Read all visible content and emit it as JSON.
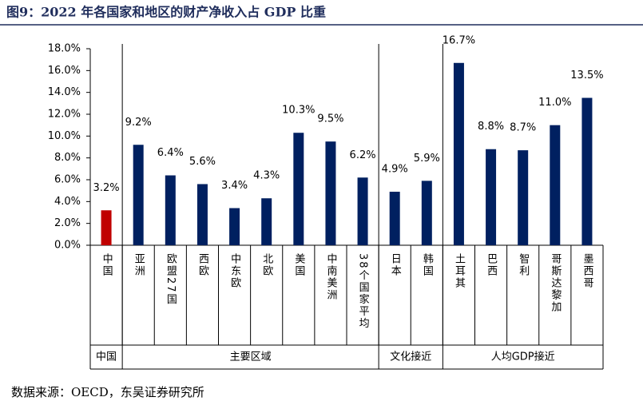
{
  "chart_data": {
    "type": "bar",
    "title": "图9：2022 年各国家和地区的财产净收入占 GDP 比重",
    "source": "数据来源：OECD，东吴证券研究所",
    "categories": [
      "中国",
      "亚洲",
      "欧盟27国",
      "西欧",
      "中东欧",
      "北欧",
      "美国",
      "中南美洲",
      "38个国家平均",
      "日本",
      "韩国",
      "土耳其",
      "巴西",
      "智利",
      "哥斯达黎加",
      "墨西哥"
    ],
    "values": [
      3.2,
      9.2,
      6.4,
      5.6,
      3.4,
      4.3,
      10.3,
      9.5,
      6.2,
      4.9,
      5.9,
      16.7,
      8.8,
      8.7,
      11.0,
      13.5
    ],
    "value_labels": [
      "3.2%",
      "9.2%",
      "6.4%",
      "5.6%",
      "3.4%",
      "4.3%",
      "10.3%",
      "9.5%",
      "6.2%",
      "4.9%",
      "5.9%",
      "16.7%",
      "8.8%",
      "8.7%",
      "11.0%",
      "13.5%"
    ],
    "colors": [
      "#c00000",
      "#002060",
      "#002060",
      "#002060",
      "#002060",
      "#002060",
      "#002060",
      "#002060",
      "#002060",
      "#002060",
      "#002060",
      "#002060",
      "#002060",
      "#002060",
      "#002060",
      "#002060"
    ],
    "groups": [
      {
        "label": "中国",
        "members": [
          "中国"
        ]
      },
      {
        "label": "主要区域",
        "members": [
          "亚洲",
          "欧盟27国",
          "西欧",
          "中东欧",
          "北欧",
          "美国",
          "中南美洲",
          "38个国家平均"
        ]
      },
      {
        "label": "文化接近",
        "members": [
          "日本",
          "韩国"
        ]
      },
      {
        "label": "人均GDP接近",
        "members": [
          "土耳其",
          "巴西",
          "智利",
          "哥斯达黎加",
          "墨西哥"
        ]
      }
    ],
    "ylim": [
      0,
      18
    ],
    "yticks": [
      {
        "value": 0,
        "label": "0.0%"
      },
      {
        "value": 2,
        "label": "2.0%"
      },
      {
        "value": 4,
        "label": "4.0%"
      },
      {
        "value": 6,
        "label": "6.0%"
      },
      {
        "value": 8,
        "label": "8.0%"
      },
      {
        "value": 10,
        "label": "10.0%"
      },
      {
        "value": 12,
        "label": "12.0%"
      },
      {
        "value": 14,
        "label": "14.0%"
      },
      {
        "value": 16,
        "label": "16.0%"
      },
      {
        "value": 18,
        "label": "18.0%"
      }
    ]
  }
}
